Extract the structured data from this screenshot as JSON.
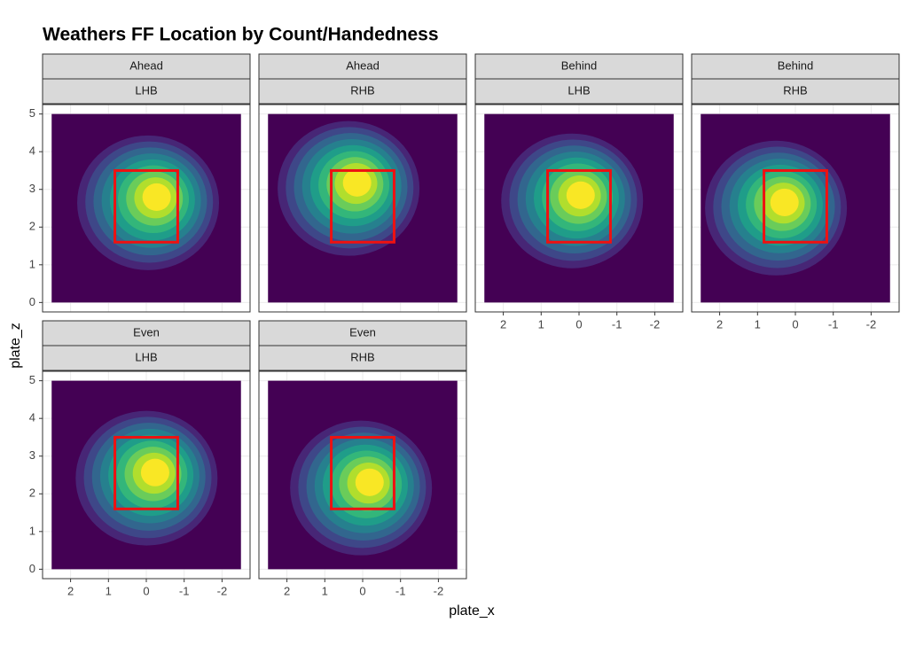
{
  "chart_data": {
    "type": "density2d",
    "title": "Weathers FF Location by Count/Handedness",
    "x_label": "plate_x",
    "y_label": "plate_z",
    "xlim": [
      2.74,
      -2.74
    ],
    "ylim": [
      -0.25,
      5.25
    ],
    "xticks": [
      2,
      1,
      0,
      -1,
      -2
    ],
    "yticks": [
      0,
      1,
      2,
      3,
      4,
      5
    ],
    "grid": true,
    "density_extent": {
      "x": [
        2.5,
        -2.5
      ],
      "z": [
        0,
        5
      ]
    },
    "strike_zone": {
      "x": [
        0.83,
        -0.83
      ],
      "z": [
        1.6,
        3.5
      ],
      "color": "#ee1111"
    },
    "facets": [
      {
        "count": "Ahead",
        "hand": "LHB",
        "peak_x": -0.16,
        "peak_z": 2.72
      },
      {
        "count": "Ahead",
        "hand": "RHB",
        "peak_x": 0.26,
        "peak_z": 3.1
      },
      {
        "count": "Behind",
        "hand": "LHB",
        "peak_x": 0.07,
        "peak_z": 2.77
      },
      {
        "count": "Behind",
        "hand": "RHB",
        "peak_x": 0.4,
        "peak_z": 2.58
      },
      {
        "count": "Even",
        "hand": "LHB",
        "peak_x": -0.12,
        "peak_z": 2.49
      },
      {
        "count": "Even",
        "hand": "RHB",
        "peak_x": -0.07,
        "peak_z": 2.23
      }
    ]
  }
}
